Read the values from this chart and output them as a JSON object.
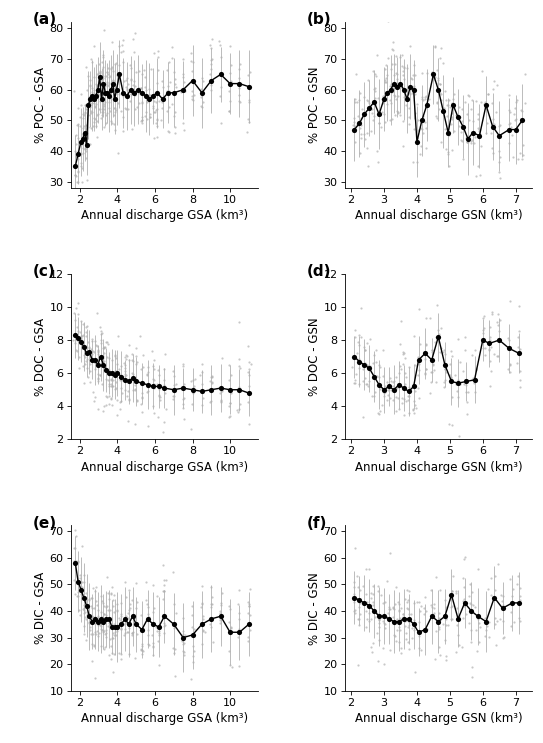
{
  "panels": {
    "a": {
      "label": "(a)",
      "ylabel": "% POC - GSA",
      "xlabel": "Annual discharge GSA (km³)",
      "xlim": [
        1.5,
        11.5
      ],
      "ylim": [
        28,
        82
      ],
      "yticks": [
        30,
        40,
        50,
        60,
        70,
        80
      ],
      "xticks": [
        2,
        4,
        6,
        8,
        10
      ],
      "line_x": [
        1.75,
        1.9,
        2.05,
        2.15,
        2.25,
        2.35,
        2.45,
        2.55,
        2.65,
        2.75,
        2.85,
        2.95,
        3.05,
        3.15,
        3.25,
        3.35,
        3.45,
        3.55,
        3.65,
        3.75,
        3.85,
        3.95,
        4.1,
        4.3,
        4.5,
        4.7,
        4.9,
        5.1,
        5.3,
        5.5,
        5.7,
        5.9,
        6.1,
        6.4,
        6.7,
        7.0,
        7.5,
        8.0,
        8.5,
        9.0,
        9.5,
        10.0,
        10.5,
        11.0
      ],
      "line_y": [
        35,
        39,
        43,
        44,
        46,
        42,
        55,
        57,
        58,
        57,
        58,
        60,
        64,
        57,
        62,
        59,
        59,
        58,
        60,
        62,
        57,
        60,
        65,
        59,
        58,
        60,
        59,
        60,
        59,
        58,
        57,
        58,
        59,
        57,
        59,
        59,
        60,
        63,
        59,
        63,
        65,
        62,
        62,
        61
      ],
      "scatter_spread": 8,
      "base_yerr": 10
    },
    "b": {
      "label": "(b)",
      "ylabel": "% POC - GSN",
      "xlabel": "Annual discharge GSN (km³)",
      "xlim": [
        1.8,
        7.5
      ],
      "ylim": [
        28,
        82
      ],
      "yticks": [
        30,
        40,
        50,
        60,
        70,
        80
      ],
      "xticks": [
        2,
        3,
        4,
        5,
        6,
        7
      ],
      "line_x": [
        2.1,
        2.25,
        2.4,
        2.55,
        2.7,
        2.85,
        3.0,
        3.1,
        3.2,
        3.3,
        3.4,
        3.5,
        3.6,
        3.7,
        3.8,
        3.9,
        4.0,
        4.15,
        4.3,
        4.5,
        4.65,
        4.8,
        4.95,
        5.1,
        5.25,
        5.4,
        5.55,
        5.7,
        5.9,
        6.1,
        6.3,
        6.5,
        6.8,
        7.0,
        7.2
      ],
      "line_y": [
        47,
        49,
        52,
        54,
        56,
        52,
        57,
        59,
        60,
        62,
        61,
        62,
        60,
        57,
        61,
        60,
        43,
        50,
        55,
        65,
        60,
        53,
        46,
        55,
        51,
        48,
        44,
        46,
        45,
        55,
        48,
        45,
        47,
        47,
        50
      ],
      "scatter_spread": 8,
      "base_yerr": 10
    },
    "c": {
      "label": "(c)",
      "ylabel": "% DOC - GSA",
      "xlabel": "Annual discharge GSA (km³)",
      "xlim": [
        1.5,
        11.5
      ],
      "ylim": [
        2,
        12
      ],
      "yticks": [
        2,
        4,
        6,
        8,
        10,
        12
      ],
      "xticks": [
        2,
        4,
        6,
        8,
        10
      ],
      "line_x": [
        1.75,
        1.9,
        2.05,
        2.2,
        2.35,
        2.5,
        2.65,
        2.8,
        2.95,
        3.1,
        3.25,
        3.4,
        3.55,
        3.7,
        3.85,
        4.0,
        4.2,
        4.4,
        4.6,
        4.8,
        5.0,
        5.3,
        5.6,
        5.9,
        6.2,
        6.5,
        7.0,
        7.5,
        8.0,
        8.5,
        9.0,
        9.5,
        10.0,
        10.5,
        11.0
      ],
      "line_y": [
        8.3,
        8.1,
        7.9,
        7.6,
        7.2,
        7.3,
        6.8,
        6.8,
        6.5,
        7.0,
        6.5,
        6.2,
        6.0,
        6.0,
        5.9,
        6.0,
        5.8,
        5.6,
        5.5,
        5.7,
        5.5,
        5.4,
        5.3,
        5.2,
        5.2,
        5.1,
        5.0,
        5.1,
        5.0,
        4.9,
        5.0,
        5.1,
        5.0,
        5.0,
        4.8
      ],
      "scatter_spread": 1.3,
      "base_yerr": 1.3
    },
    "d": {
      "label": "(d)",
      "ylabel": "% DOC - GSN",
      "xlabel": "Annual discharge GSN (km³)",
      "xlim": [
        1.8,
        7.5
      ],
      "ylim": [
        2,
        12
      ],
      "yticks": [
        2,
        4,
        6,
        8,
        10,
        12
      ],
      "xticks": [
        2,
        3,
        4,
        5,
        6,
        7
      ],
      "line_x": [
        2.1,
        2.25,
        2.4,
        2.55,
        2.7,
        2.85,
        3.0,
        3.15,
        3.3,
        3.45,
        3.6,
        3.75,
        3.9,
        4.05,
        4.25,
        4.45,
        4.65,
        4.85,
        5.05,
        5.25,
        5.5,
        5.75,
        6.0,
        6.2,
        6.5,
        6.8,
        7.1
      ],
      "line_y": [
        7.0,
        6.7,
        6.5,
        6.3,
        5.8,
        5.3,
        5.0,
        5.2,
        5.0,
        5.3,
        5.1,
        4.9,
        5.2,
        6.8,
        7.2,
        6.8,
        8.2,
        6.5,
        5.5,
        5.4,
        5.5,
        5.6,
        8.0,
        7.8,
        8.0,
        7.5,
        7.2
      ],
      "scatter_spread": 1.3,
      "base_yerr": 1.3
    },
    "e": {
      "label": "(e)",
      "ylabel": "% DIC - GSA",
      "xlabel": "Annual discharge GSA (km³)",
      "xlim": [
        1.5,
        11.5
      ],
      "ylim": [
        10,
        72
      ],
      "yticks": [
        10,
        20,
        30,
        40,
        50,
        60,
        70
      ],
      "xticks": [
        2,
        4,
        6,
        8,
        10
      ],
      "line_x": [
        1.75,
        1.9,
        2.05,
        2.2,
        2.35,
        2.5,
        2.65,
        2.8,
        2.95,
        3.1,
        3.25,
        3.4,
        3.55,
        3.7,
        3.85,
        4.0,
        4.2,
        4.4,
        4.6,
        4.8,
        5.0,
        5.3,
        5.6,
        5.9,
        6.2,
        6.5,
        7.0,
        7.5,
        8.0,
        8.5,
        9.0,
        9.5,
        10.0,
        10.5,
        11.0
      ],
      "line_y": [
        58,
        51,
        48,
        45,
        42,
        38,
        36,
        37,
        36,
        37,
        36,
        37,
        37,
        34,
        34,
        34,
        35,
        37,
        35,
        38,
        35,
        33,
        37,
        35,
        34,
        38,
        35,
        30,
        31,
        35,
        37,
        38,
        32,
        32,
        35
      ],
      "scatter_spread": 8,
      "base_yerr": 11
    },
    "f": {
      "label": "(f)",
      "ylabel": "% DIC - GSN",
      "xlabel": "Annual discharge GSN (km³)",
      "xlim": [
        1.8,
        7.5
      ],
      "ylim": [
        10,
        72
      ],
      "yticks": [
        10,
        20,
        30,
        40,
        50,
        60,
        70
      ],
      "xticks": [
        2,
        3,
        4,
        5,
        6,
        7
      ],
      "line_x": [
        2.1,
        2.25,
        2.4,
        2.55,
        2.7,
        2.85,
        3.0,
        3.15,
        3.3,
        3.45,
        3.6,
        3.75,
        3.9,
        4.05,
        4.25,
        4.45,
        4.65,
        4.85,
        5.05,
        5.25,
        5.45,
        5.65,
        5.85,
        6.1,
        6.35,
        6.6,
        6.9,
        7.1
      ],
      "line_y": [
        45,
        44,
        43,
        42,
        40,
        38,
        38,
        37,
        36,
        36,
        37,
        37,
        35,
        32,
        33,
        38,
        36,
        38,
        46,
        37,
        43,
        40,
        38,
        36,
        45,
        41,
        43,
        43
      ],
      "scatter_spread": 8,
      "base_yerr": 10
    }
  },
  "bg_color": "#ffffff",
  "label_fontsize": 11,
  "tick_fontsize": 8,
  "axis_label_fontsize": 8.5
}
